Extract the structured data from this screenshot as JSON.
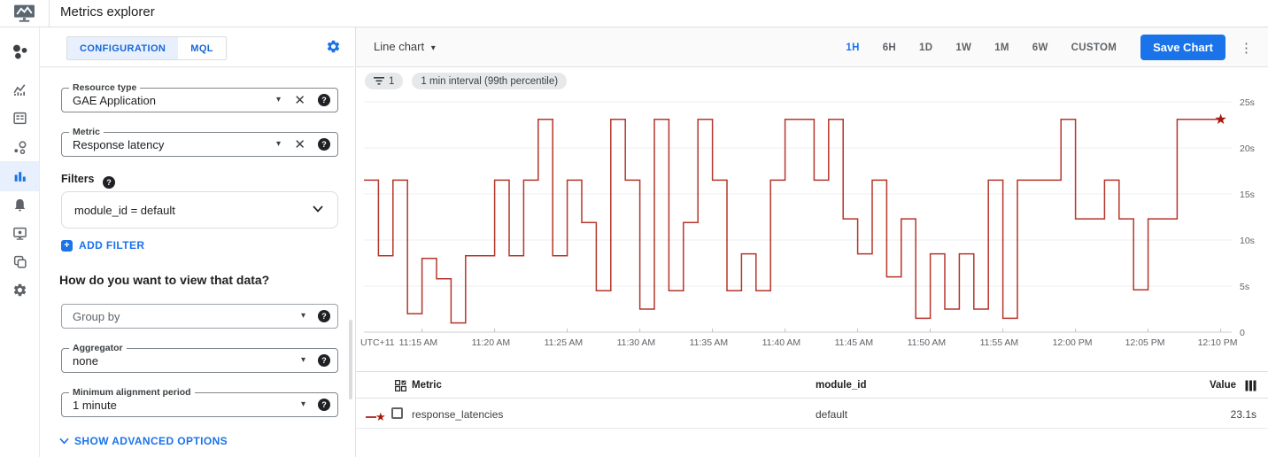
{
  "header": {
    "title": "Metrics explorer",
    "logo_icon": "monitoring-logo-icon"
  },
  "glyphs": {
    "dropdown": "▾",
    "ellipsis": "⋮",
    "close": "✕",
    "question": "?",
    "plus": "+",
    "star": "★"
  },
  "sidebar": {
    "items": [
      {
        "icon": "overview-icon",
        "selected": false
      },
      {
        "icon": "metrics-icon",
        "selected": false
      },
      {
        "icon": "dashboards-icon",
        "selected": false
      },
      {
        "icon": "services-icon",
        "selected": false
      },
      {
        "icon": "metrics-explorer-icon",
        "selected": true
      },
      {
        "icon": "alerting-icon",
        "selected": false
      },
      {
        "icon": "uptime-checks-icon",
        "selected": false
      },
      {
        "icon": "groups-icon",
        "selected": false
      },
      {
        "icon": "settings-icon",
        "selected": false
      }
    ]
  },
  "config_panel": {
    "tabs": [
      {
        "label": "CONFIGURATION",
        "selected": true
      },
      {
        "label": "MQL",
        "selected": false
      }
    ],
    "settings_icon": "gear-icon",
    "resource_type": {
      "label": "Resource type",
      "value": "GAE Application"
    },
    "metric": {
      "label": "Metric",
      "value": "Response latency"
    },
    "filters": {
      "label": "Filters",
      "chips": [
        {
          "text": "module_id = default"
        }
      ],
      "add_label": "ADD FILTER"
    },
    "view_heading": "How do you want to view that data?",
    "group_by": {
      "placeholder": "Group by"
    },
    "aggregator": {
      "label": "Aggregator",
      "value": "none"
    },
    "min_alignment": {
      "label": "Minimum alignment period",
      "value": "1 minute"
    },
    "advanced_label": "SHOW ADVANCED OPTIONS"
  },
  "chart_panel": {
    "chart_type_label": "Line chart",
    "ranges": [
      "1H",
      "6H",
      "1D",
      "1W",
      "1M",
      "6W",
      "CUSTOM"
    ],
    "selected_range": "1H",
    "save_label": "Save Chart",
    "chips": [
      {
        "icon": "filter-icon",
        "text": "1"
      },
      {
        "text": "1 min interval (99th percentile)"
      }
    ]
  },
  "chart_data": {
    "type": "line",
    "subtype": "step",
    "unit": "seconds",
    "interval": "1 min",
    "aggregation": "99th percentile",
    "ylim": [
      0,
      25
    ],
    "y_ticks": [
      {
        "value": 0,
        "label": "0"
      },
      {
        "value": 5,
        "label": "5s"
      },
      {
        "value": 10,
        "label": "10s"
      },
      {
        "value": 15,
        "label": "15s"
      },
      {
        "value": 20,
        "label": "20s"
      },
      {
        "value": 25,
        "label": "25s"
      }
    ],
    "tz_label": "UTC+11",
    "x_start": "11:11 AM",
    "x_ticks": [
      {
        "minute": 4,
        "label": "11:15 AM"
      },
      {
        "minute": 9,
        "label": "11:20 AM"
      },
      {
        "minute": 14,
        "label": "11:25 AM"
      },
      {
        "minute": 19,
        "label": "11:30 AM"
      },
      {
        "minute": 24,
        "label": "11:35 AM"
      },
      {
        "minute": 29,
        "label": "11:40 AM"
      },
      {
        "minute": 34,
        "label": "11:45 AM"
      },
      {
        "minute": 39,
        "label": "11:50 AM"
      },
      {
        "minute": 44,
        "label": "11:55 AM"
      },
      {
        "minute": 49,
        "label": "12:00 PM"
      },
      {
        "minute": 54,
        "label": "12:05 PM"
      },
      {
        "minute": 59,
        "label": "12:10 PM"
      }
    ],
    "series": [
      {
        "name": "response_latencies",
        "color": "#b5362b",
        "marker": "star",
        "marker_color": "#a61b10",
        "values": [
          16.5,
          8.3,
          16.5,
          2.0,
          8.0,
          5.8,
          1.0,
          8.3,
          8.3,
          16.5,
          8.3,
          16.5,
          23.1,
          8.3,
          16.5,
          11.9,
          4.5,
          23.1,
          16.5,
          2.5,
          23.1,
          4.5,
          11.9,
          23.1,
          16.5,
          4.5,
          8.5,
          4.5,
          16.5,
          23.1,
          23.1,
          16.5,
          23.1,
          12.3,
          8.5,
          16.5,
          6.0,
          12.3,
          1.5,
          8.5,
          2.5,
          8.5,
          2.5,
          16.5,
          1.5,
          16.5,
          16.5,
          16.5,
          23.1,
          12.3,
          12.3,
          16.5,
          12.3,
          4.6,
          12.3,
          12.3,
          23.1,
          23.1,
          23.1
        ]
      }
    ],
    "grid": true,
    "legend_position": "table-below"
  },
  "table": {
    "columns": [
      "Metric",
      "module_id",
      "Value"
    ],
    "rows": [
      {
        "metric": "response_latencies",
        "module_id": "default",
        "value": "23.1s",
        "color": "#b5362b"
      }
    ]
  },
  "colors": {
    "accent_blue": "#1a73e8",
    "tab_blue_bg": "#e8f0fe",
    "line_red": "#b5362b",
    "grid_line": "#eceff1",
    "axis_line": "#dadce0",
    "text_gray": "#5f6368",
    "border": "#e0e0e0"
  }
}
